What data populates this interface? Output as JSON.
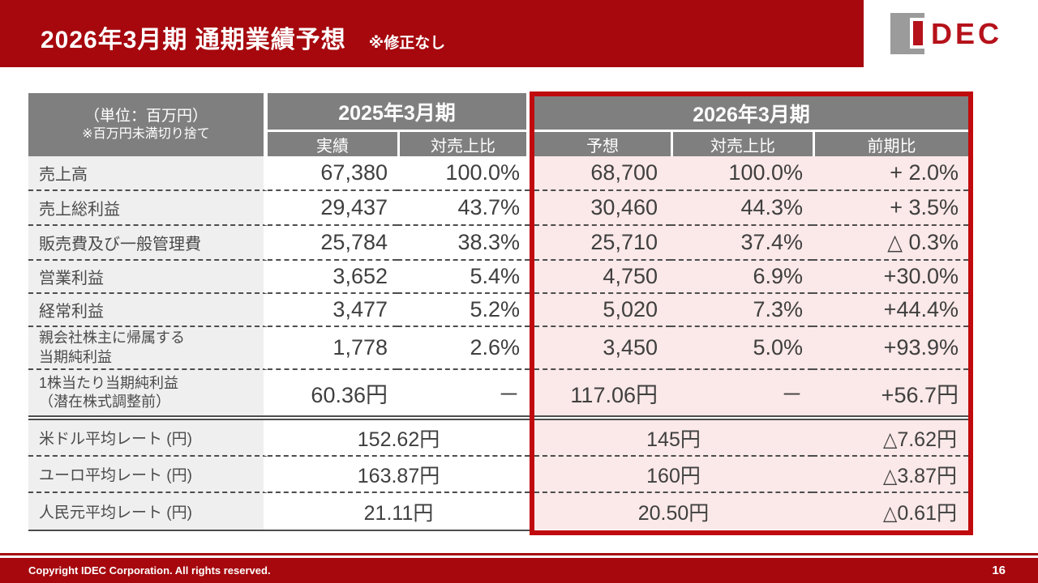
{
  "header": {
    "title": "2026年3月期 通期業績予想",
    "note": "※修正なし",
    "logo_text": "DEC"
  },
  "colors": {
    "bar_red": "#A6080D",
    "border_red": "#C00A0E",
    "logo_red": "#B5121B",
    "header_gray": "#7F7F7F",
    "label_bg": "#EFEFEF",
    "pink": "#FBE8E8",
    "line": "#4D4D4D",
    "value_text": "#3F3F3F"
  },
  "table": {
    "unit_lines": [
      "（単位：百万円）",
      "※百万円未満切り捨て"
    ],
    "groups": [
      {
        "title": "2025年3月期",
        "columns": [
          "実績",
          "対売上比"
        ]
      },
      {
        "title": "2026年3月期",
        "columns": [
          "予想",
          "対売上比",
          "前期比"
        ]
      }
    ],
    "rows": [
      {
        "label_lines": [
          "売上高"
        ],
        "actual": "67,380",
        "actual_ratio": "100.0%",
        "forecast": "68,700",
        "forecast_ratio": "100.0%",
        "yoy": "+ 2.0%"
      },
      {
        "label_lines": [
          "売上総利益"
        ],
        "actual": "29,437",
        "actual_ratio": "43.7%",
        "forecast": "30,460",
        "forecast_ratio": "44.3%",
        "yoy": "+ 3.5%"
      },
      {
        "label_lines": [
          "販売費及び一般管理費"
        ],
        "actual": "25,784",
        "actual_ratio": "38.3%",
        "forecast": "25,710",
        "forecast_ratio": "37.4%",
        "yoy": "△ 0.3%"
      },
      {
        "label_lines": [
          "営業利益"
        ],
        "actual": "3,652",
        "actual_ratio": "5.4%",
        "forecast": "4,750",
        "forecast_ratio": "6.9%",
        "yoy": "+30.0%"
      },
      {
        "label_lines": [
          "経常利益"
        ],
        "actual": "3,477",
        "actual_ratio": "5.2%",
        "forecast": "5,020",
        "forecast_ratio": "7.3%",
        "yoy": "+44.4%"
      },
      {
        "label_lines": [
          "親会社株主に帰属する",
          "当期純利益"
        ],
        "actual": "1,778",
        "actual_ratio": "2.6%",
        "forecast": "3,450",
        "forecast_ratio": "5.0%",
        "yoy": "+93.9%"
      },
      {
        "label_lines": [
          "1株当たり当期純利益",
          "（潜在株式調整前）"
        ],
        "actual": "60.36円",
        "actual_ratio": "－",
        "forecast": "117.06円",
        "forecast_ratio": "－",
        "yoy": "+56.7円"
      }
    ],
    "fx_rows": [
      {
        "label": "米ドル平均レート (円)",
        "actual": "152.62円",
        "forecast": "145円",
        "yoy": "△7.62円"
      },
      {
        "label": "ユーロ平均レート (円)",
        "actual": "163.87円",
        "forecast": "160円",
        "yoy": "△3.87円"
      },
      {
        "label": "人民元平均レート (円)",
        "actual": "21.11円",
        "forecast": "20.50円",
        "yoy": "△0.61円"
      }
    ]
  },
  "footer": {
    "copyright": "Copyright IDEC Corporation. All rights reserved.",
    "page": "16"
  }
}
